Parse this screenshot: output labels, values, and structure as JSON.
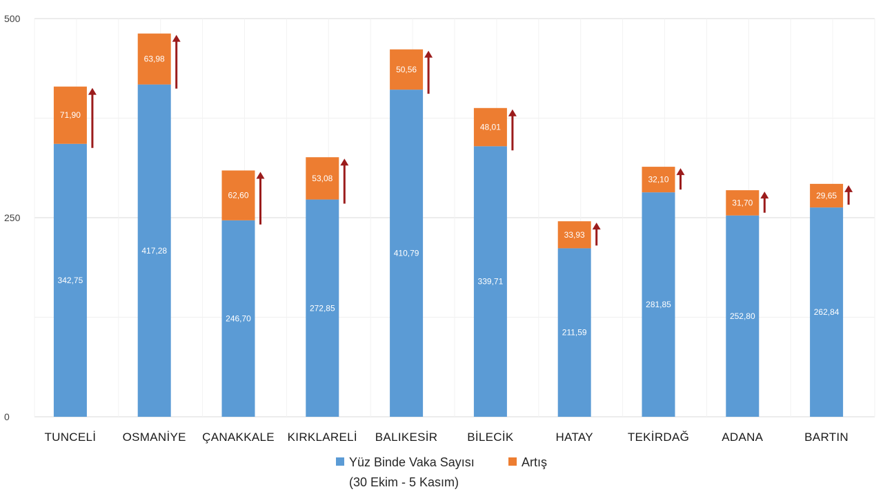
{
  "chart_data": {
    "type": "bar",
    "stacked": true,
    "title": "",
    "categories": [
      "TUNCELİ",
      "OSMANİYE",
      "ÇANAKKALE",
      "KIRKLARELİ",
      "BALIKESİR",
      "BİLECİK",
      "HATAY",
      "TEKİRDAĞ",
      "ADANA",
      "BARTIN"
    ],
    "series": [
      {
        "name": "Yüz Binde Vaka Sayısı",
        "color": "#5B9BD5",
        "values": [
          342.75,
          417.28,
          246.7,
          272.85,
          410.79,
          339.71,
          211.59,
          281.85,
          252.8,
          262.84
        ],
        "labels": [
          "342,75",
          "417,28",
          "246,70",
          "272,85",
          "410,79",
          "339,71",
          "211,59",
          "281,85",
          "252,80",
          "262,84"
        ]
      },
      {
        "name": "Artış",
        "color": "#ED7D31",
        "values": [
          71.9,
          63.98,
          62.6,
          53.08,
          50.56,
          48.01,
          33.93,
          32.1,
          31.7,
          29.65
        ],
        "labels": [
          "71,90",
          "63,98",
          "62,60",
          "53,08",
          "50,56",
          "48,01",
          "33,93",
          "32,10",
          "31,70",
          "29,65"
        ]
      }
    ],
    "yticks": [
      0,
      250,
      500
    ],
    "ylim": [
      0,
      500
    ],
    "grid": true,
    "arrow_color": "#9B1C1C",
    "legend": {
      "position": "bottom",
      "period": "(30 Ekim - 5 Kasım)"
    }
  }
}
